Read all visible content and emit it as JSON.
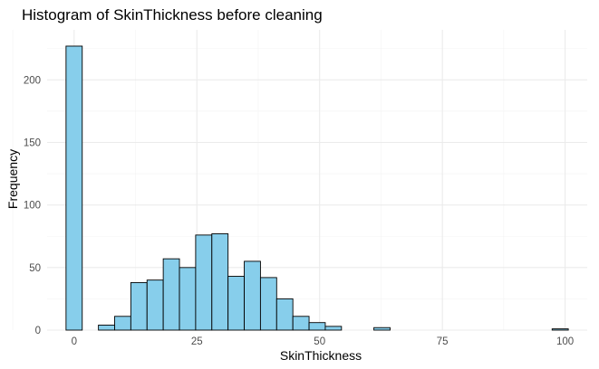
{
  "chart_data": {
    "type": "bar",
    "title": "Histogram of SkinThickness before cleaning",
    "xlabel": "SkinThickness",
    "ylabel": "Frequency",
    "bin_width": 3.3,
    "bin_centers": [
      0,
      3.3,
      6.6,
      9.9,
      13.2,
      16.5,
      19.8,
      23.1,
      26.4,
      29.7,
      33.0,
      36.3,
      39.6,
      42.9,
      46.2,
      49.5,
      52.8,
      56.1,
      59.4,
      62.7,
      66.0,
      69.3,
      72.6,
      75.9,
      79.2,
      82.5,
      85.8,
      89.1,
      92.4,
      95.7,
      99.0
    ],
    "values": [
      227,
      0,
      4,
      11,
      38,
      40,
      57,
      50,
      76,
      77,
      43,
      55,
      42,
      25,
      11,
      6,
      3,
      0,
      0,
      2,
      0,
      0,
      0,
      0,
      0,
      0,
      0,
      0,
      0,
      0,
      1
    ],
    "xlim": [
      -5.5,
      104.5
    ],
    "ylim": [
      0,
      240
    ],
    "x_ticks": [
      0,
      25,
      50,
      75,
      100
    ],
    "x_tick_labels": [
      "0",
      "25",
      "50",
      "75",
      "100"
    ],
    "y_ticks": [
      0,
      50,
      100,
      150,
      200
    ],
    "y_tick_labels": [
      "0",
      "50",
      "100",
      "150",
      "200"
    ],
    "grid": true,
    "legend": "none",
    "bar_fill": "#87ceeb",
    "bar_outline": "#000000"
  }
}
